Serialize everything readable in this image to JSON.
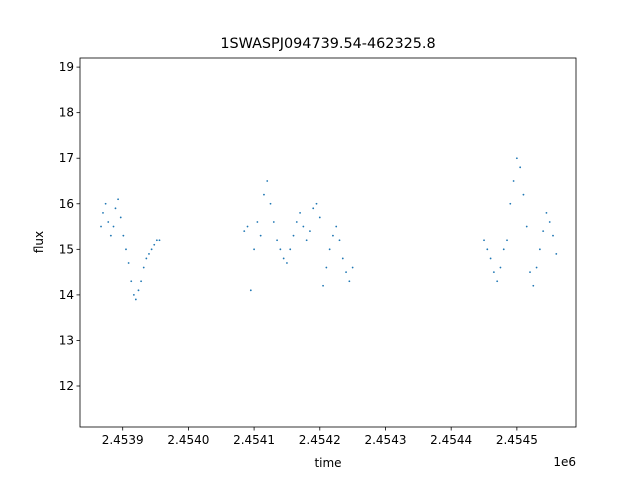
{
  "chart_data": {
    "type": "scatter",
    "title": "1SWASPJ094739.54-462325.8",
    "xlabel": "time",
    "ylabel": "flux",
    "x_offset_label": "1e6",
    "xlim": [
      2453835,
      2454590
    ],
    "ylim": [
      11.1,
      19.2
    ],
    "xticks": [
      2453900,
      2454000,
      2454100,
      2454200,
      2454300,
      2454400,
      2454500
    ],
    "xtick_labels": [
      "2.4539",
      "2.4540",
      "2.4541",
      "2.4542",
      "2.4543",
      "2.4544",
      "2.4545"
    ],
    "yticks": [
      12,
      13,
      14,
      15,
      16,
      17,
      18,
      19
    ],
    "ytick_labels": [
      "12",
      "13",
      "14",
      "15",
      "16",
      "17",
      "18",
      "19"
    ],
    "grid": false,
    "marker_color": "#1f77b4",
    "series": [
      {
        "x": [
          2453867,
          2453870,
          2453874,
          2453878,
          2453882,
          2453886,
          2453889,
          2453893,
          2453897,
          2453901,
          2453905,
          2453909,
          2453913,
          2453917,
          2453920,
          2453924,
          2453928,
          2453932,
          2453936,
          2453940,
          2453944,
          2453948,
          2453952,
          2453956,
          2454085,
          2454090,
          2454095,
          2454100,
          2454105,
          2454110,
          2454115,
          2454120,
          2454125,
          2454130,
          2454135,
          2454140,
          2454145,
          2454150,
          2454155,
          2454160,
          2454165,
          2454170,
          2454175,
          2454180,
          2454185,
          2454190,
          2454195,
          2454200,
          2454205,
          2454210,
          2454215,
          2454220,
          2454225,
          2454230,
          2454235,
          2454240,
          2454245,
          2454250,
          2454450,
          2454455,
          2454460,
          2454465,
          2454470,
          2454475,
          2454480,
          2454485,
          2454490,
          2454495,
          2454500,
          2454505,
          2454510,
          2454515,
          2454520,
          2454525,
          2454530,
          2454535,
          2454540,
          2454545,
          2454550,
          2454555,
          2454560
        ],
        "y": [
          15.5,
          15.8,
          16.0,
          15.6,
          15.3,
          15.5,
          15.9,
          16.1,
          15.7,
          15.3,
          15.0,
          14.7,
          14.3,
          14.0,
          13.9,
          14.1,
          14.3,
          14.6,
          14.8,
          14.9,
          15.0,
          15.1,
          15.2,
          15.2,
          15.4,
          15.5,
          14.1,
          15.0,
          15.6,
          15.3,
          16.2,
          16.5,
          16.0,
          15.6,
          15.2,
          15.0,
          14.8,
          14.7,
          15.0,
          15.3,
          15.6,
          15.8,
          15.5,
          15.2,
          15.4,
          15.9,
          16.0,
          15.7,
          14.2,
          14.6,
          15.0,
          15.3,
          15.5,
          15.2,
          14.8,
          14.5,
          14.3,
          14.6,
          15.2,
          15.0,
          14.8,
          14.5,
          14.3,
          14.6,
          15.0,
          15.2,
          16.0,
          16.5,
          17.0,
          16.8,
          16.2,
          15.5,
          14.5,
          14.2,
          14.6,
          15.0,
          15.4,
          15.8,
          15.6,
          15.3,
          14.9
        ]
      }
    ]
  }
}
